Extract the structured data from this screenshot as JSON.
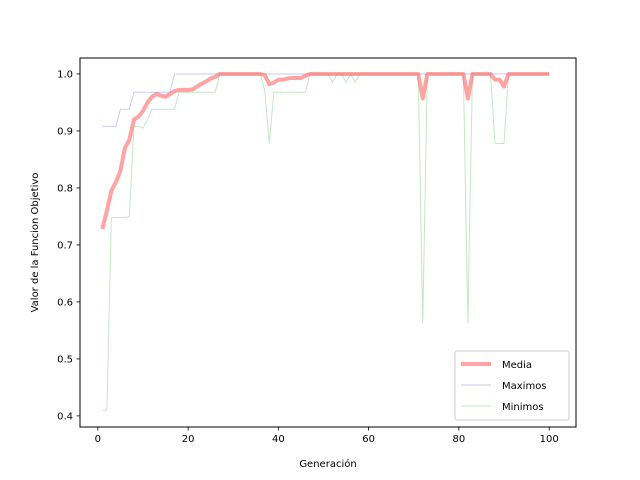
{
  "chart_data": {
    "type": "line",
    "title": "",
    "xlabel": "Generación",
    "ylabel": "Valor de la Funcion Objetivo",
    "xlim": [
      -3.95,
      105.95
    ],
    "ylim": [
      0.3805,
      1.028
    ],
    "xticks": [
      0,
      20,
      40,
      60,
      80,
      100
    ],
    "yticks": [
      0.4,
      0.5,
      0.6,
      0.7,
      0.8,
      0.9,
      1.0
    ],
    "xtick_labels": [
      "0",
      "20",
      "40",
      "60",
      "80",
      "100"
    ],
    "ytick_labels": [
      "0.4",
      "0.5",
      "0.6",
      "0.7",
      "0.8",
      "0.9",
      "1.0"
    ],
    "grid": false,
    "legend_position": "lower-right",
    "series": [
      {
        "name": "Media",
        "color": "#ff6666",
        "x": [
          1,
          2,
          3,
          4,
          5,
          6,
          7,
          8,
          9,
          10,
          11,
          12,
          13,
          14,
          15,
          16,
          17,
          18,
          19,
          20,
          21,
          22,
          23,
          24,
          25,
          26,
          27,
          28,
          29,
          30,
          31,
          32,
          33,
          34,
          35,
          36,
          37,
          38,
          39,
          40,
          41,
          42,
          43,
          44,
          45,
          46,
          47,
          48,
          49,
          50,
          51,
          52,
          53,
          54,
          55,
          56,
          57,
          58,
          59,
          60,
          61,
          62,
          63,
          64,
          65,
          66,
          67,
          68,
          69,
          70,
          71,
          72,
          73,
          74,
          75,
          76,
          77,
          78,
          79,
          80,
          81,
          82,
          83,
          84,
          85,
          86,
          87,
          88,
          89,
          90,
          91,
          92,
          93,
          94,
          95,
          96,
          97,
          98,
          99,
          100
        ],
        "values": [
          0.728,
          0.76,
          0.795,
          0.81,
          0.83,
          0.87,
          0.885,
          0.92,
          0.925,
          0.935,
          0.95,
          0.96,
          0.965,
          0.962,
          0.96,
          0.965,
          0.97,
          0.972,
          0.972,
          0.972,
          0.973,
          0.978,
          0.983,
          0.987,
          0.992,
          0.995,
          1.0,
          1.0,
          1.0,
          1.0,
          1.0,
          1.0,
          1.0,
          1.0,
          1.0,
          1.0,
          0.998,
          0.982,
          0.985,
          0.99,
          0.99,
          0.992,
          0.993,
          0.993,
          0.993,
          0.997,
          1.0,
          1.0,
          1.0,
          1.0,
          1.0,
          1.0,
          1.0,
          1.0,
          1.0,
          1.0,
          1.0,
          1.0,
          1.0,
          1.0,
          1.0,
          1.0,
          1.0,
          1.0,
          1.0,
          1.0,
          1.0,
          1.0,
          1.0,
          1.0,
          1.0,
          0.957,
          1.0,
          1.0,
          1.0,
          1.0,
          1.0,
          1.0,
          1.0,
          1.0,
          1.0,
          0.957,
          1.0,
          1.0,
          1.0,
          1.0,
          1.0,
          0.99,
          0.99,
          0.978,
          1.0,
          1.0,
          1.0,
          1.0,
          1.0,
          1.0,
          1.0,
          1.0,
          1.0,
          1.0
        ]
      },
      {
        "name": "Maximos",
        "color": "#6666dd",
        "x": [
          1,
          2,
          3,
          4,
          5,
          6,
          7,
          8,
          9,
          10,
          11,
          12,
          13,
          14,
          15,
          16,
          17,
          18,
          19,
          20,
          21,
          22,
          23,
          24,
          25,
          26,
          27,
          28,
          29,
          30,
          31,
          32,
          33,
          34,
          35,
          36,
          37,
          38,
          39,
          40,
          41,
          42,
          43,
          44,
          45,
          46,
          47,
          48,
          49,
          50,
          51,
          52,
          53,
          54,
          55,
          56,
          57,
          58,
          59,
          60,
          61,
          62,
          63,
          64,
          65,
          66,
          67,
          68,
          69,
          70,
          71,
          72,
          73,
          74,
          75,
          76,
          77,
          78,
          79,
          80,
          81,
          82,
          83,
          84,
          85,
          86,
          87,
          88,
          89,
          90,
          91,
          92,
          93,
          94,
          95,
          96,
          97,
          98,
          99,
          100
        ],
        "values": [
          0.908,
          0.908,
          0.908,
          0.908,
          0.938,
          0.938,
          0.938,
          0.968,
          0.968,
          0.968,
          0.968,
          0.968,
          0.968,
          0.968,
          0.968,
          0.968,
          1.0,
          1.0,
          1.0,
          1.0,
          1.0,
          1.0,
          1.0,
          1.0,
          1.0,
          1.0,
          1.0,
          1.0,
          1.0,
          1.0,
          1.0,
          1.0,
          1.0,
          1.0,
          1.0,
          1.0,
          1.0,
          1.0,
          1.0,
          1.0,
          1.0,
          1.0,
          1.0,
          1.0,
          1.0,
          1.0,
          1.0,
          1.0,
          1.0,
          1.0,
          1.0,
          1.0,
          1.0,
          1.0,
          1.0,
          1.0,
          1.0,
          1.0,
          1.0,
          1.0,
          1.0,
          1.0,
          1.0,
          1.0,
          1.0,
          1.0,
          1.0,
          1.0,
          1.0,
          1.0,
          1.0,
          1.0,
          1.0,
          1.0,
          1.0,
          1.0,
          1.0,
          1.0,
          1.0,
          1.0,
          1.0,
          1.0,
          1.0,
          1.0,
          1.0,
          1.0,
          1.0,
          1.0,
          1.0,
          1.0,
          1.0,
          1.0,
          1.0,
          1.0,
          1.0,
          1.0,
          1.0,
          1.0,
          1.0,
          1.0
        ]
      },
      {
        "name": "Minimos",
        "color": "#55bb55",
        "x": [
          1,
          2,
          3,
          4,
          5,
          6,
          7,
          8,
          9,
          10,
          11,
          12,
          13,
          14,
          15,
          16,
          17,
          18,
          19,
          20,
          21,
          22,
          23,
          24,
          25,
          26,
          27,
          28,
          29,
          30,
          31,
          32,
          33,
          34,
          35,
          36,
          37,
          38,
          39,
          40,
          41,
          42,
          43,
          44,
          45,
          46,
          47,
          48,
          49,
          50,
          51,
          52,
          53,
          54,
          55,
          56,
          57,
          58,
          59,
          60,
          61,
          62,
          63,
          64,
          65,
          66,
          67,
          68,
          69,
          70,
          71,
          72,
          73,
          74,
          75,
          76,
          77,
          78,
          79,
          80,
          81,
          82,
          83,
          84,
          85,
          86,
          87,
          88,
          89,
          90,
          91,
          92,
          93,
          94,
          95,
          96,
          97,
          98,
          99,
          100
        ],
        "values": [
          0.41,
          0.41,
          0.748,
          0.748,
          0.748,
          0.748,
          0.75,
          0.908,
          0.908,
          0.905,
          0.92,
          0.938,
          0.938,
          0.938,
          0.938,
          0.938,
          0.938,
          0.968,
          0.968,
          0.968,
          0.968,
          0.968,
          0.968,
          0.968,
          0.968,
          0.968,
          1.0,
          1.0,
          1.0,
          1.0,
          1.0,
          1.0,
          1.0,
          1.0,
          1.0,
          1.0,
          0.97,
          0.878,
          0.968,
          0.968,
          0.968,
          0.968,
          0.968,
          0.968,
          0.968,
          0.968,
          1.0,
          1.0,
          1.0,
          1.0,
          1.0,
          0.985,
          1.0,
          1.0,
          0.985,
          1.0,
          0.985,
          1.0,
          1.0,
          1.0,
          1.0,
          1.0,
          1.0,
          1.0,
          1.0,
          1.0,
          1.0,
          1.0,
          1.0,
          1.0,
          1.0,
          0.563,
          1.0,
          1.0,
          1.0,
          1.0,
          1.0,
          1.0,
          1.0,
          1.0,
          1.0,
          0.563,
          1.0,
          1.0,
          1.0,
          1.0,
          1.0,
          0.878,
          0.878,
          0.878,
          1.0,
          1.0,
          1.0,
          1.0,
          1.0,
          1.0,
          1.0,
          1.0,
          1.0,
          1.0
        ]
      }
    ]
  }
}
